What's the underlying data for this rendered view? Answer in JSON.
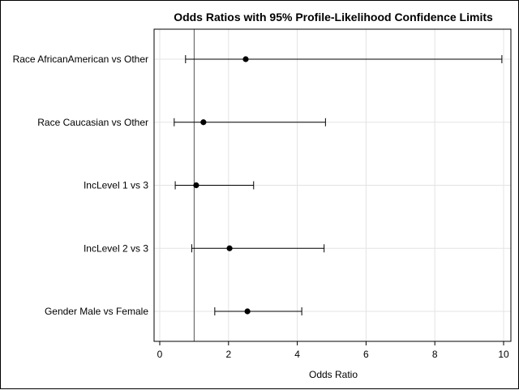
{
  "chart_data": {
    "type": "scatter",
    "title": "Odds Ratios with 95% Profile-Likelihood Confidence Limits",
    "xlabel": "Odds Ratio",
    "ylabel": "",
    "xlim": [
      0,
      10
    ],
    "x_ticks": [
      0,
      2,
      4,
      6,
      8,
      10
    ],
    "reference_line": 1,
    "grid": true,
    "categories": [
      "Race AfricanAmerican vs Other",
      "Race Caucasian vs Other",
      "IncLevel 1 vs 3",
      "IncLevel 2 vs 3",
      "Gender Male vs Female"
    ],
    "estimates": [
      2.5,
      1.27,
      1.06,
      2.03,
      2.55
    ],
    "lower": [
      0.75,
      0.42,
      0.45,
      0.93,
      1.6
    ],
    "upper": [
      9.95,
      4.82,
      2.73,
      4.78,
      4.13
    ]
  }
}
